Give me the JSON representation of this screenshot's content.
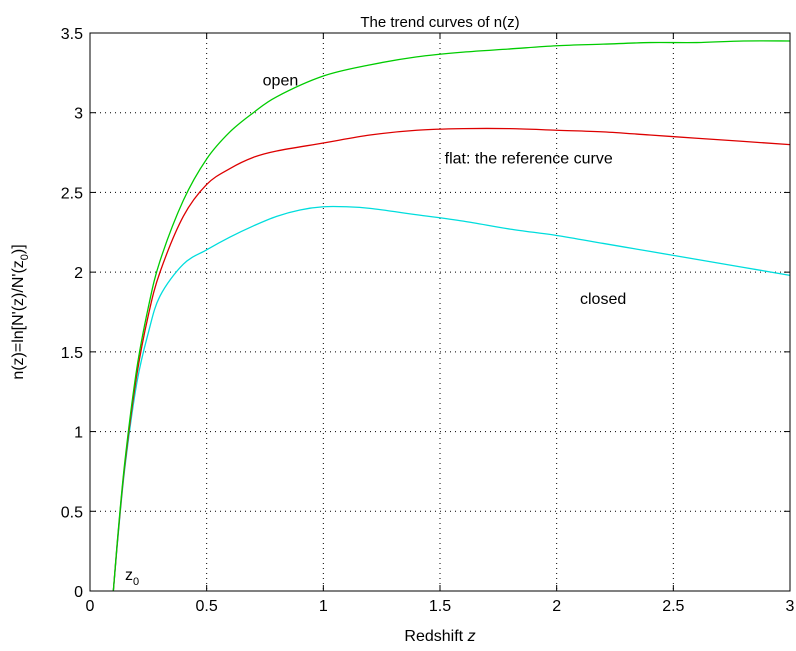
{
  "chart_data": {
    "type": "line",
    "title": "The trend curves of n(z)",
    "xlabel": "Redshift z",
    "xlabel_prefix": "Redshift ",
    "xlabel_var": "z",
    "ylabel": "n(z)=ln[N'(z)/N'(z0)]",
    "ylabel_prefix": "n(z)=ln[N'(z)/N'(z",
    "ylabel_sub": "0",
    "ylabel_suffix": ")]",
    "xlim": [
      0,
      3
    ],
    "ylim": [
      0,
      3.5
    ],
    "grid": true,
    "x_ticks": [
      "0",
      "0.5",
      "1",
      "1.5",
      "2",
      "2.5",
      "3"
    ],
    "y_ticks": [
      "0",
      "0.5",
      "1",
      "1.5",
      "2",
      "2.5",
      "3",
      "3.5"
    ],
    "series": [
      {
        "name": "open",
        "color": "#00cc00",
        "x": [
          0.1,
          0.12,
          0.15,
          0.2,
          0.25,
          0.3,
          0.4,
          0.5,
          0.6,
          0.7,
          0.8,
          1.0,
          1.2,
          1.4,
          1.6,
          1.8,
          2.0,
          2.2,
          2.4,
          2.6,
          2.8,
          3.0
        ],
        "y": [
          0.0,
          0.36,
          0.82,
          1.39,
          1.78,
          2.07,
          2.45,
          2.71,
          2.88,
          3.0,
          3.1,
          3.23,
          3.3,
          3.35,
          3.38,
          3.4,
          3.42,
          3.43,
          3.44,
          3.44,
          3.45,
          3.45
        ]
      },
      {
        "name": "flat: the reference curve",
        "color": "#dd0000",
        "x": [
          0.1,
          0.12,
          0.15,
          0.2,
          0.25,
          0.3,
          0.4,
          0.5,
          0.6,
          0.7,
          0.8,
          1.0,
          1.2,
          1.4,
          1.6,
          1.8,
          2.0,
          2.2,
          2.4,
          2.6,
          2.8,
          3.0
        ],
        "y": [
          0.0,
          0.35,
          0.8,
          1.35,
          1.73,
          2.0,
          2.35,
          2.55,
          2.65,
          2.72,
          2.76,
          2.81,
          2.86,
          2.89,
          2.9,
          2.9,
          2.89,
          2.88,
          2.86,
          2.84,
          2.82,
          2.8
        ]
      },
      {
        "name": "closed",
        "color": "#00dddd",
        "x": [
          0.1,
          0.12,
          0.15,
          0.2,
          0.25,
          0.3,
          0.4,
          0.5,
          0.6,
          0.7,
          0.8,
          0.9,
          1.0,
          1.1,
          1.2,
          1.4,
          1.6,
          1.8,
          2.0,
          2.2,
          2.4,
          2.6,
          2.8,
          3.0
        ],
        "y": [
          0.0,
          0.34,
          0.78,
          1.3,
          1.62,
          1.85,
          2.05,
          2.14,
          2.22,
          2.29,
          2.35,
          2.39,
          2.41,
          2.41,
          2.4,
          2.36,
          2.32,
          2.27,
          2.23,
          2.18,
          2.13,
          2.08,
          2.03,
          1.98
        ]
      }
    ],
    "annotations": [
      {
        "text": "open",
        "x": 0.74,
        "y": 3.17
      },
      {
        "text": "flat: the reference curve",
        "x": 1.52,
        "y": 2.68
      },
      {
        "text": "closed",
        "x": 2.1,
        "y": 1.8
      },
      {
        "text": "z",
        "sub": "0",
        "x": 0.15,
        "y": 0.07
      }
    ]
  }
}
